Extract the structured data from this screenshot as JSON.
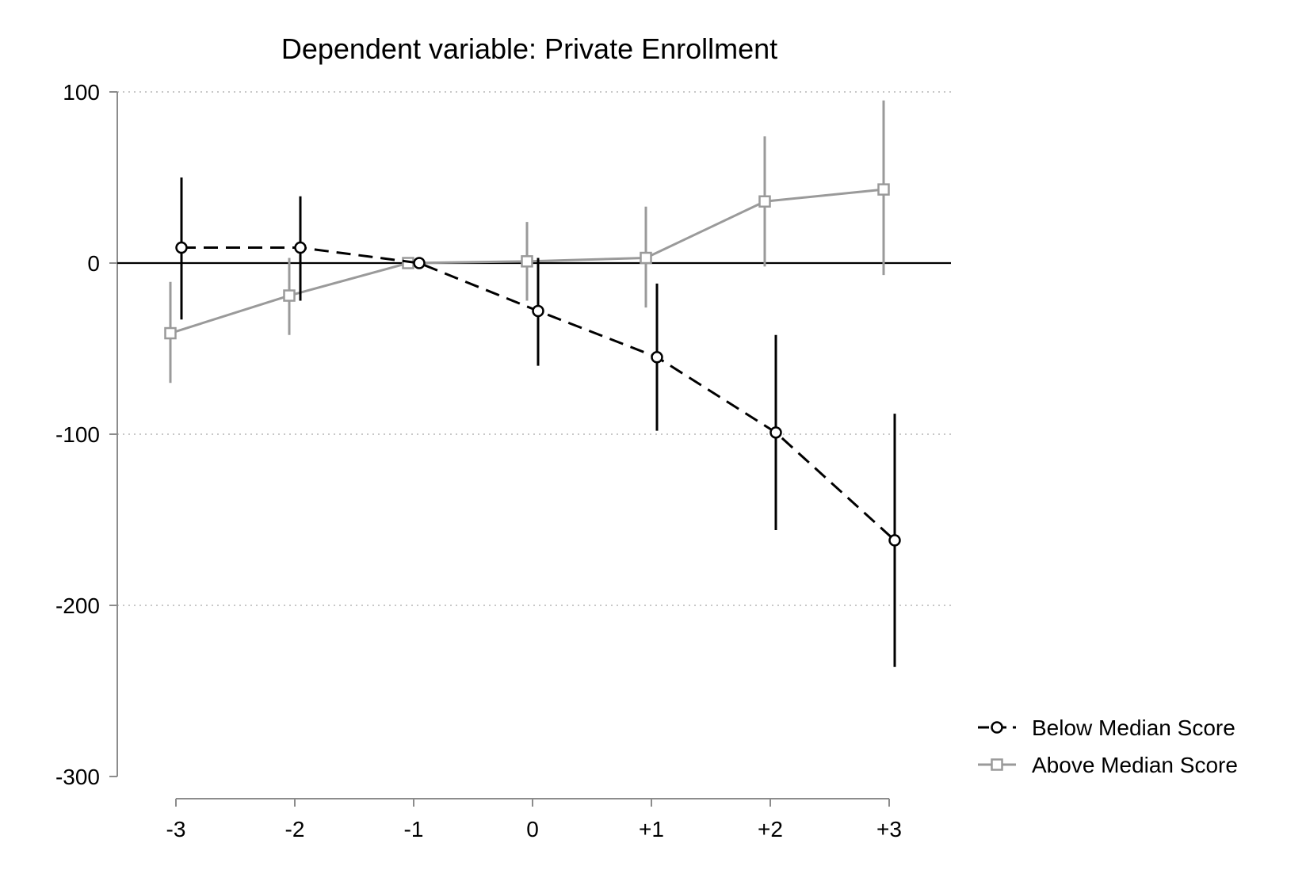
{
  "chart_data": {
    "type": "line",
    "title": "Dependent variable: Private Enrollment",
    "xlabel": "",
    "ylabel": "",
    "categories": [
      "-3",
      "-2",
      "-1",
      "0",
      "+1",
      "+2",
      "+3"
    ],
    "x": [
      -3,
      -2,
      -1,
      0,
      1,
      2,
      3
    ],
    "ylim": [
      -300,
      100
    ],
    "yticks": [
      100,
      0,
      -100,
      -200,
      -300
    ],
    "ytick_labels": [
      "100",
      "0",
      "-100",
      "-200",
      "-300"
    ],
    "grid": "y-dotted",
    "reference_line_y": 0,
    "legend_position": "right",
    "series": [
      {
        "name": "Below Median Score",
        "marker": "circle",
        "line_style": "dashed",
        "color": "#000000",
        "values": [
          9,
          9,
          0,
          -28,
          -55,
          -99,
          -162
        ],
        "ci_low": [
          -33,
          -22,
          0,
          -60,
          -98,
          -156,
          -236
        ],
        "ci_high": [
          50,
          39,
          0,
          3,
          -12,
          -42,
          -88
        ]
      },
      {
        "name": "Above Median Score",
        "marker": "square",
        "line_style": "solid",
        "color": "#9a9a9a",
        "values": [
          -41,
          -19,
          0,
          1,
          3,
          36,
          43
        ],
        "ci_low": [
          -70,
          -42,
          0,
          -22,
          -26,
          -2,
          -7
        ],
        "ci_high": [
          -11,
          3,
          0,
          24,
          33,
          74,
          95
        ]
      }
    ]
  }
}
